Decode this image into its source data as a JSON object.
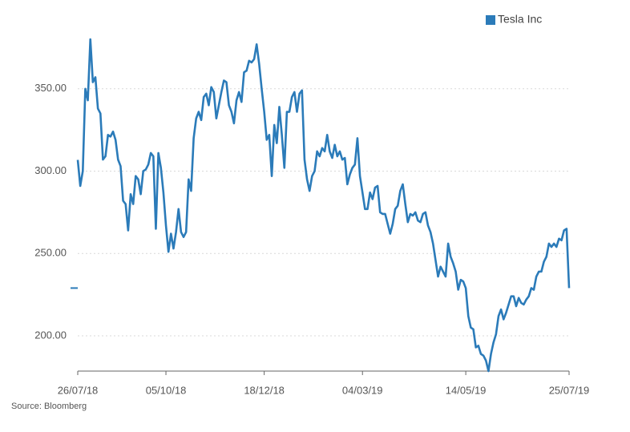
{
  "chart_data": {
    "type": "line",
    "source": "Source: Bloomberg",
    "categories": [
      "26/07/18",
      null,
      null,
      null,
      null,
      null,
      null,
      null,
      null,
      null,
      null,
      null,
      null,
      null,
      null,
      null,
      null,
      null,
      null,
      null,
      null,
      null,
      null,
      null,
      null,
      null,
      null,
      null,
      null,
      null,
      null,
      null,
      null,
      null,
      null,
      "05/10/18",
      null,
      null,
      null,
      null,
      null,
      null,
      null,
      null,
      null,
      null,
      null,
      null,
      null,
      null,
      null,
      null,
      null,
      null,
      null,
      null,
      null,
      null,
      null,
      null,
      null,
      null,
      null,
      null,
      null,
      null,
      null,
      null,
      null,
      null,
      null,
      null,
      null,
      null,
      "18/12/18",
      null,
      null,
      null,
      null,
      null,
      null,
      null,
      null,
      null,
      null,
      null,
      null,
      null,
      null,
      null,
      null,
      null,
      null,
      null,
      null,
      null,
      null,
      null,
      null,
      null,
      null,
      null,
      null,
      null,
      null,
      null,
      null,
      null,
      null,
      null,
      null,
      null,
      null,
      "04/03/19",
      null,
      null,
      null,
      null,
      null,
      null,
      null,
      null,
      null,
      null,
      null,
      null,
      null,
      null,
      null,
      null,
      null,
      null,
      null,
      null,
      null,
      null,
      null,
      null,
      null,
      null,
      null,
      null,
      null,
      null,
      null,
      null,
      null,
      null,
      null,
      null,
      null,
      null,
      null,
      null,
      "14/05/19",
      null,
      null,
      null,
      null,
      null,
      null,
      null,
      null,
      null,
      null,
      null,
      null,
      null,
      null,
      null,
      null,
      null,
      null,
      null,
      null,
      null,
      null,
      null,
      null,
      null,
      null,
      null,
      null,
      null,
      null,
      null,
      null,
      null,
      null,
      null,
      null,
      null,
      null,
      null,
      null,
      "25/07/19"
    ],
    "series": [
      {
        "name": "Tesla Inc",
        "color": "#2b7bb9",
        "values": [
          306.8,
          291,
          300,
          350,
          343,
          380,
          354,
          357,
          338,
          335,
          307,
          309,
          322,
          321,
          324,
          319,
          307,
          303,
          282,
          280,
          264,
          286,
          280,
          297,
          295,
          286,
          300,
          301,
          304,
          311,
          309,
          265,
          311,
          302,
          287,
          267,
          251,
          262,
          253,
          263,
          277,
          263,
          260,
          263,
          295,
          288,
          320,
          332,
          336,
          331,
          345,
          347,
          340,
          351,
          348,
          332,
          340,
          348,
          355,
          354,
          340,
          336,
          329,
          343,
          348,
          342,
          360,
          361,
          367,
          366,
          368,
          377,
          365,
          350,
          336,
          319,
          322,
          297,
          328,
          317,
          339,
          322,
          302,
          336,
          336,
          345,
          348,
          336,
          347,
          349,
          307,
          295,
          288,
          297,
          300,
          312,
          309,
          314,
          312,
          322,
          312,
          308,
          316,
          309,
          312,
          307,
          308,
          292,
          298,
          302,
          304,
          320,
          297,
          287,
          277,
          277,
          287,
          283,
          290,
          291,
          275,
          274,
          274,
          268,
          262,
          268,
          277,
          279,
          288,
          292,
          280,
          269,
          274,
          273,
          275,
          270,
          269,
          274,
          275,
          267,
          263,
          256,
          246,
          236,
          242,
          239,
          236,
          256,
          248,
          244,
          239,
          228,
          234,
          233,
          229,
          212,
          205,
          204,
          193,
          194,
          189,
          188,
          185,
          178.6,
          189,
          196,
          201,
          212,
          216,
          210,
          214,
          219,
          224,
          224,
          218,
          223,
          220,
          219,
          222,
          224,
          229,
          228,
          236,
          239,
          239,
          245,
          248,
          256,
          254,
          256,
          254,
          259,
          258,
          264,
          265,
          229
        ]
      }
    ],
    "ylim": [
      178.6,
      385.4
    ],
    "yticks": [
      {
        "value": 200,
        "label": "200.00"
      },
      {
        "value": 250,
        "label": "250.00"
      },
      {
        "value": 300,
        "label": "300.00"
      },
      {
        "value": 350,
        "label": "350.00"
      }
    ],
    "grid": true,
    "legend": "top-right"
  }
}
